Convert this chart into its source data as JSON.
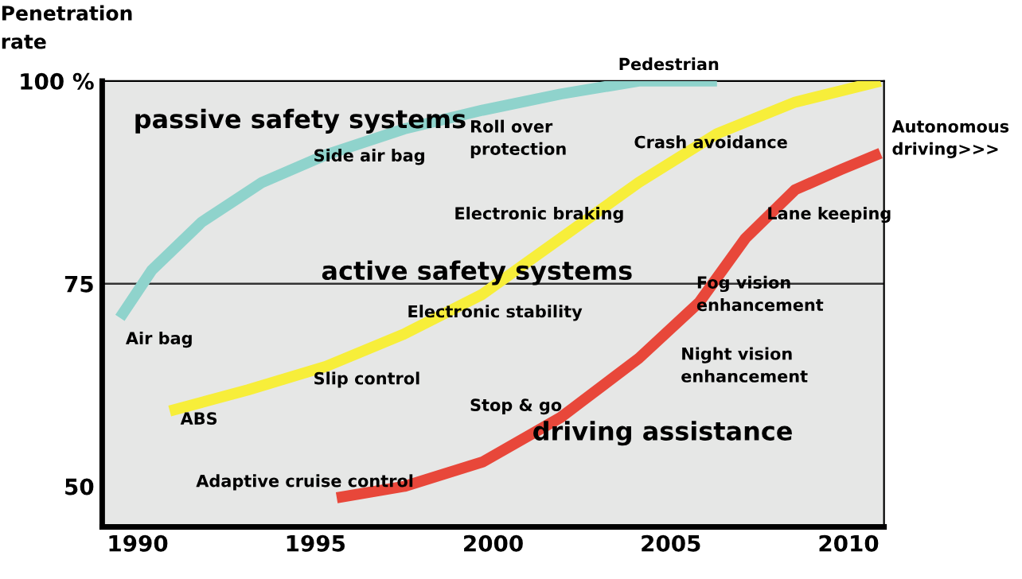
{
  "chart_data": {
    "type": "line",
    "ylabel": "Penetration\nrate",
    "xlim": [
      1989,
      2011
    ],
    "xticks": [
      1990,
      1995,
      2000,
      2005,
      2010
    ],
    "ylim": [
      45,
      100
    ],
    "yticks": [
      50,
      75,
      {
        "value": 100,
        "label": "100 %"
      }
    ],
    "grid": false,
    "legend": false,
    "marker": "none",
    "line_style": "solid",
    "series": [
      {
        "color": "#8fd3cc",
        "x": [
          1989.5,
          1990.4,
          1991.8,
          1993.5,
          1995.3,
          1997.5,
          1999.7,
          2001.9,
          2004.1,
          2006.3
        ],
        "values": [
          70.8,
          76.7,
          82.6,
          87.5,
          90.9,
          94.1,
          96.4,
          98.4,
          100,
          100
        ]
      },
      {
        "color": "#f7ee3a",
        "x": [
          1990.9,
          1993.1,
          1995.3,
          1997.5,
          1999.7,
          2001.9,
          2004.1,
          2006.3,
          2008.5,
          2010.9
        ],
        "values": [
          59.3,
          61.9,
          64.8,
          68.8,
          73.7,
          80.6,
          87.5,
          93.5,
          97.4,
          100
        ]
      },
      {
        "color": "#e8473a",
        "x": [
          1995.6,
          1997.5,
          1999.7,
          2001.9,
          2004.1,
          2005.8,
          2007.1,
          2008.5,
          2009.8,
          2010.9
        ],
        "values": [
          48.6,
          50,
          53,
          58.5,
          65.8,
          72.7,
          80.6,
          86.6,
          89.1,
          91.1
        ]
      }
    ],
    "ref_lines": [
      {
        "axis": "y",
        "value": 75,
        "label": null,
        "color": "#333333"
      }
    ],
    "annotations": [
      "passive safety systems",
      "Side air bag",
      "Roll over\nprotection",
      "Pedestrian",
      "Crash avoidance",
      "Autonomous\ndriving>>>",
      "Electronic braking",
      "Lane keeping",
      "active safety systems",
      "Fog vision\nenhancement",
      "Electronic stability",
      "Air bag",
      "Slip control",
      "Night vision\nenhancement",
      "ABS",
      "Stop & go",
      "driving assistance",
      "Adaptive cruise control"
    ]
  }
}
